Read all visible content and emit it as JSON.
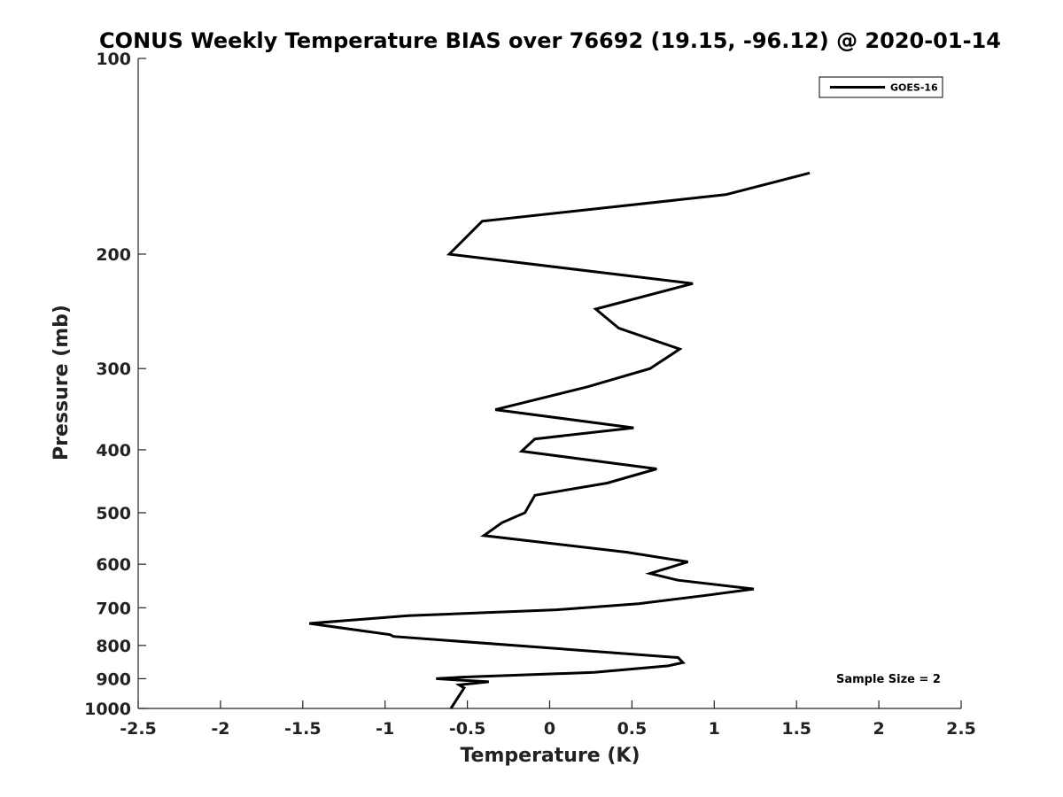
{
  "chart_data": {
    "type": "line",
    "title": "CONUS Weekly Temperature BIAS over 76692 (19.15, -96.12) @ 2020-01-14",
    "xlabel": "Temperature (K)",
    "ylabel": "Pressure (mb)",
    "xlim": [
      -2.5,
      2.5
    ],
    "ylim": [
      1000,
      100
    ],
    "y_scale": "log",
    "y_reversed": true,
    "x_ticks": [
      -2.5,
      -2,
      -1.5,
      -1,
      -0.5,
      0,
      0.5,
      1,
      1.5,
      2,
      2.5
    ],
    "x_tick_labels": [
      "-2.5",
      "-2",
      "-1.5",
      "-1",
      "-0.5",
      "0",
      "0.5",
      "1",
      "1.5",
      "2",
      "2.5"
    ],
    "y_ticks": [
      100,
      200,
      300,
      400,
      500,
      600,
      700,
      800,
      900,
      1000
    ],
    "y_tick_labels": [
      "100",
      "200",
      "300",
      "400",
      "500",
      "600",
      "700",
      "800",
      "900",
      "1000"
    ],
    "grid": false,
    "legend_position": "top-right",
    "series": [
      {
        "name": "GOES-16",
        "color": "#000000",
        "x": [
          1.58,
          1.07,
          -0.41,
          -0.61,
          0.87,
          0.28,
          0.42,
          0.79,
          0.61,
          0.23,
          -0.33,
          0.51,
          -0.09,
          -0.17,
          0.65,
          0.35,
          -0.09,
          -0.15,
          -0.15,
          -0.29,
          -0.4,
          0.47,
          0.84,
          0.61,
          0.78,
          1.24,
          0.95,
          0.54,
          0.04,
          -0.86,
          -1.46,
          -0.97,
          -0.95,
          0.78,
          0.81,
          0.72,
          0.27,
          -0.53,
          -0.69,
          -0.37,
          -0.55,
          -0.52,
          -0.6
        ],
        "y": [
          150,
          162,
          178,
          200,
          222,
          243,
          260,
          280,
          300,
          320,
          347,
          370,
          385,
          402,
          428,
          450,
          470,
          500,
          500,
          518,
          542,
          575,
          595,
          620,
          635,
          655,
          670,
          690,
          705,
          720,
          740,
          770,
          775,
          835,
          850,
          860,
          880,
          895,
          900,
          910,
          920,
          930,
          1000
        ]
      }
    ],
    "annotations": [
      "Sample Size = 2"
    ]
  }
}
